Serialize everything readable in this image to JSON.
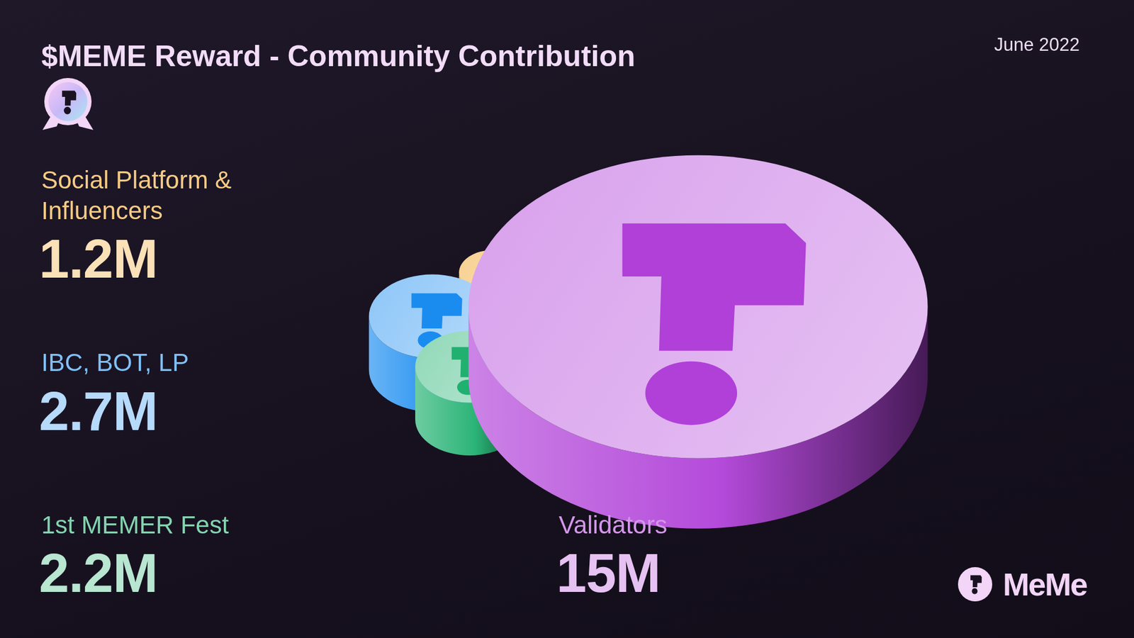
{
  "chart_data": {
    "type": "bubble",
    "title": "$MEME Reward - Community Contribution",
    "subtitle": "June 2022",
    "brand": "MeMe",
    "categories": [
      "Social Platform & Influencers",
      "IBC, BOT, LP",
      "1st MEMER Fest",
      "Validators"
    ],
    "values": [
      1.2,
      2.7,
      2.2,
      15
    ],
    "value_labels": [
      "1.2M",
      "2.7M",
      "2.2M",
      "15M"
    ],
    "colors": [
      "#f0a020",
      "#1a8cf0",
      "#20b070",
      "#b040d8"
    ],
    "data_labels": true,
    "tick_labels": false,
    "grid": false
  }
}
